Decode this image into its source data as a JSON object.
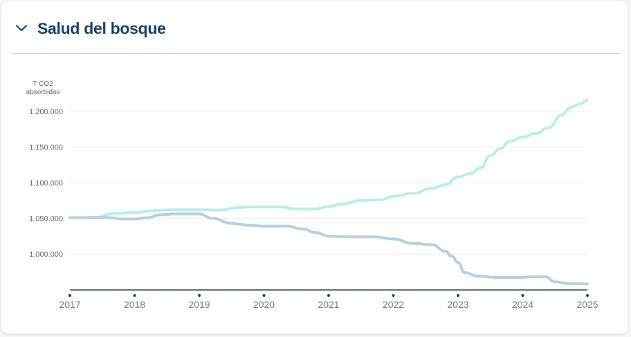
{
  "section": {
    "title": "Salud del bosque",
    "collapse_icon": "chevron-down-icon"
  },
  "colors": {
    "title": "#0f3d6b",
    "series_rising": "#b6efea",
    "series_falling": "#b3cfe1",
    "axis": "#123b5e"
  },
  "chart_data": {
    "type": "line",
    "ylabel_lines": [
      "T CO2",
      "absorbidas"
    ],
    "ylim": [
      950000,
      1220000
    ],
    "yticks": [
      1000000,
      1050000,
      1100000,
      1150000,
      1200000
    ],
    "ytick_labels": [
      "1.000.000",
      "1.050.000",
      "1.100.000",
      "1.150.000",
      "1.200.000"
    ],
    "xlim": [
      2017,
      2025
    ],
    "xticks": [
      2017,
      2018,
      2019,
      2020,
      2021,
      2022,
      2023,
      2024,
      2025
    ],
    "xtick_labels": [
      "2017",
      "2018",
      "2019",
      "2020",
      "2021",
      "2022",
      "2023",
      "2024",
      "2025"
    ],
    "grid": true,
    "series": [
      {
        "key": "rising",
        "x": [
          2017,
          2017.4,
          2017.7,
          2018,
          2018.3,
          2018.6,
          2019,
          2019.3,
          2019.6,
          2019.8,
          2020,
          2020.25,
          2020.5,
          2020.8,
          2021,
          2021.2,
          2021.5,
          2021.8,
          2022,
          2022.3,
          2022.6,
          2022.8,
          2023,
          2023.2,
          2023.35,
          2023.5,
          2023.65,
          2023.8,
          2024,
          2024.2,
          2024.4,
          2024.6,
          2024.75,
          2024.9,
          2025
        ],
        "y": [
          1051000,
          1051500,
          1057000,
          1058000,
          1061000,
          1062000,
          1062000,
          1061500,
          1065000,
          1066000,
          1066000,
          1066000,
          1063000,
          1063000,
          1066500,
          1070000,
          1075000,
          1076000,
          1081000,
          1085000,
          1092000,
          1097000,
          1108000,
          1113000,
          1121000,
          1138000,
          1148000,
          1158000,
          1164000,
          1169000,
          1177000,
          1195000,
          1206000,
          1211000,
          1216000
        ]
      },
      {
        "key": "falling",
        "x": [
          2017,
          2017.3,
          2017.6,
          2017.8,
          2018,
          2018.2,
          2018.4,
          2018.6,
          2019,
          2019.2,
          2019.5,
          2019.8,
          2020,
          2020.2,
          2020.35,
          2020.6,
          2020.8,
          2021,
          2021.3,
          2021.7,
          2022,
          2022.3,
          2022.6,
          2022.8,
          2022.9,
          2023,
          2023.1,
          2023.3,
          2023.6,
          2023.9,
          2024.2,
          2024.35,
          2024.5,
          2024.7,
          2025
        ],
        "y": [
          1051000,
          1051000,
          1051000,
          1049000,
          1049000,
          1051000,
          1055000,
          1056000,
          1056000,
          1050000,
          1043000,
          1040000,
          1039000,
          1039000,
          1039000,
          1035000,
          1030000,
          1025000,
          1024000,
          1024000,
          1021000,
          1015000,
          1013000,
          1004000,
          997000,
          988000,
          974000,
          969000,
          967000,
          967000,
          968000,
          968000,
          961000,
          958500,
          958000
        ]
      }
    ]
  }
}
